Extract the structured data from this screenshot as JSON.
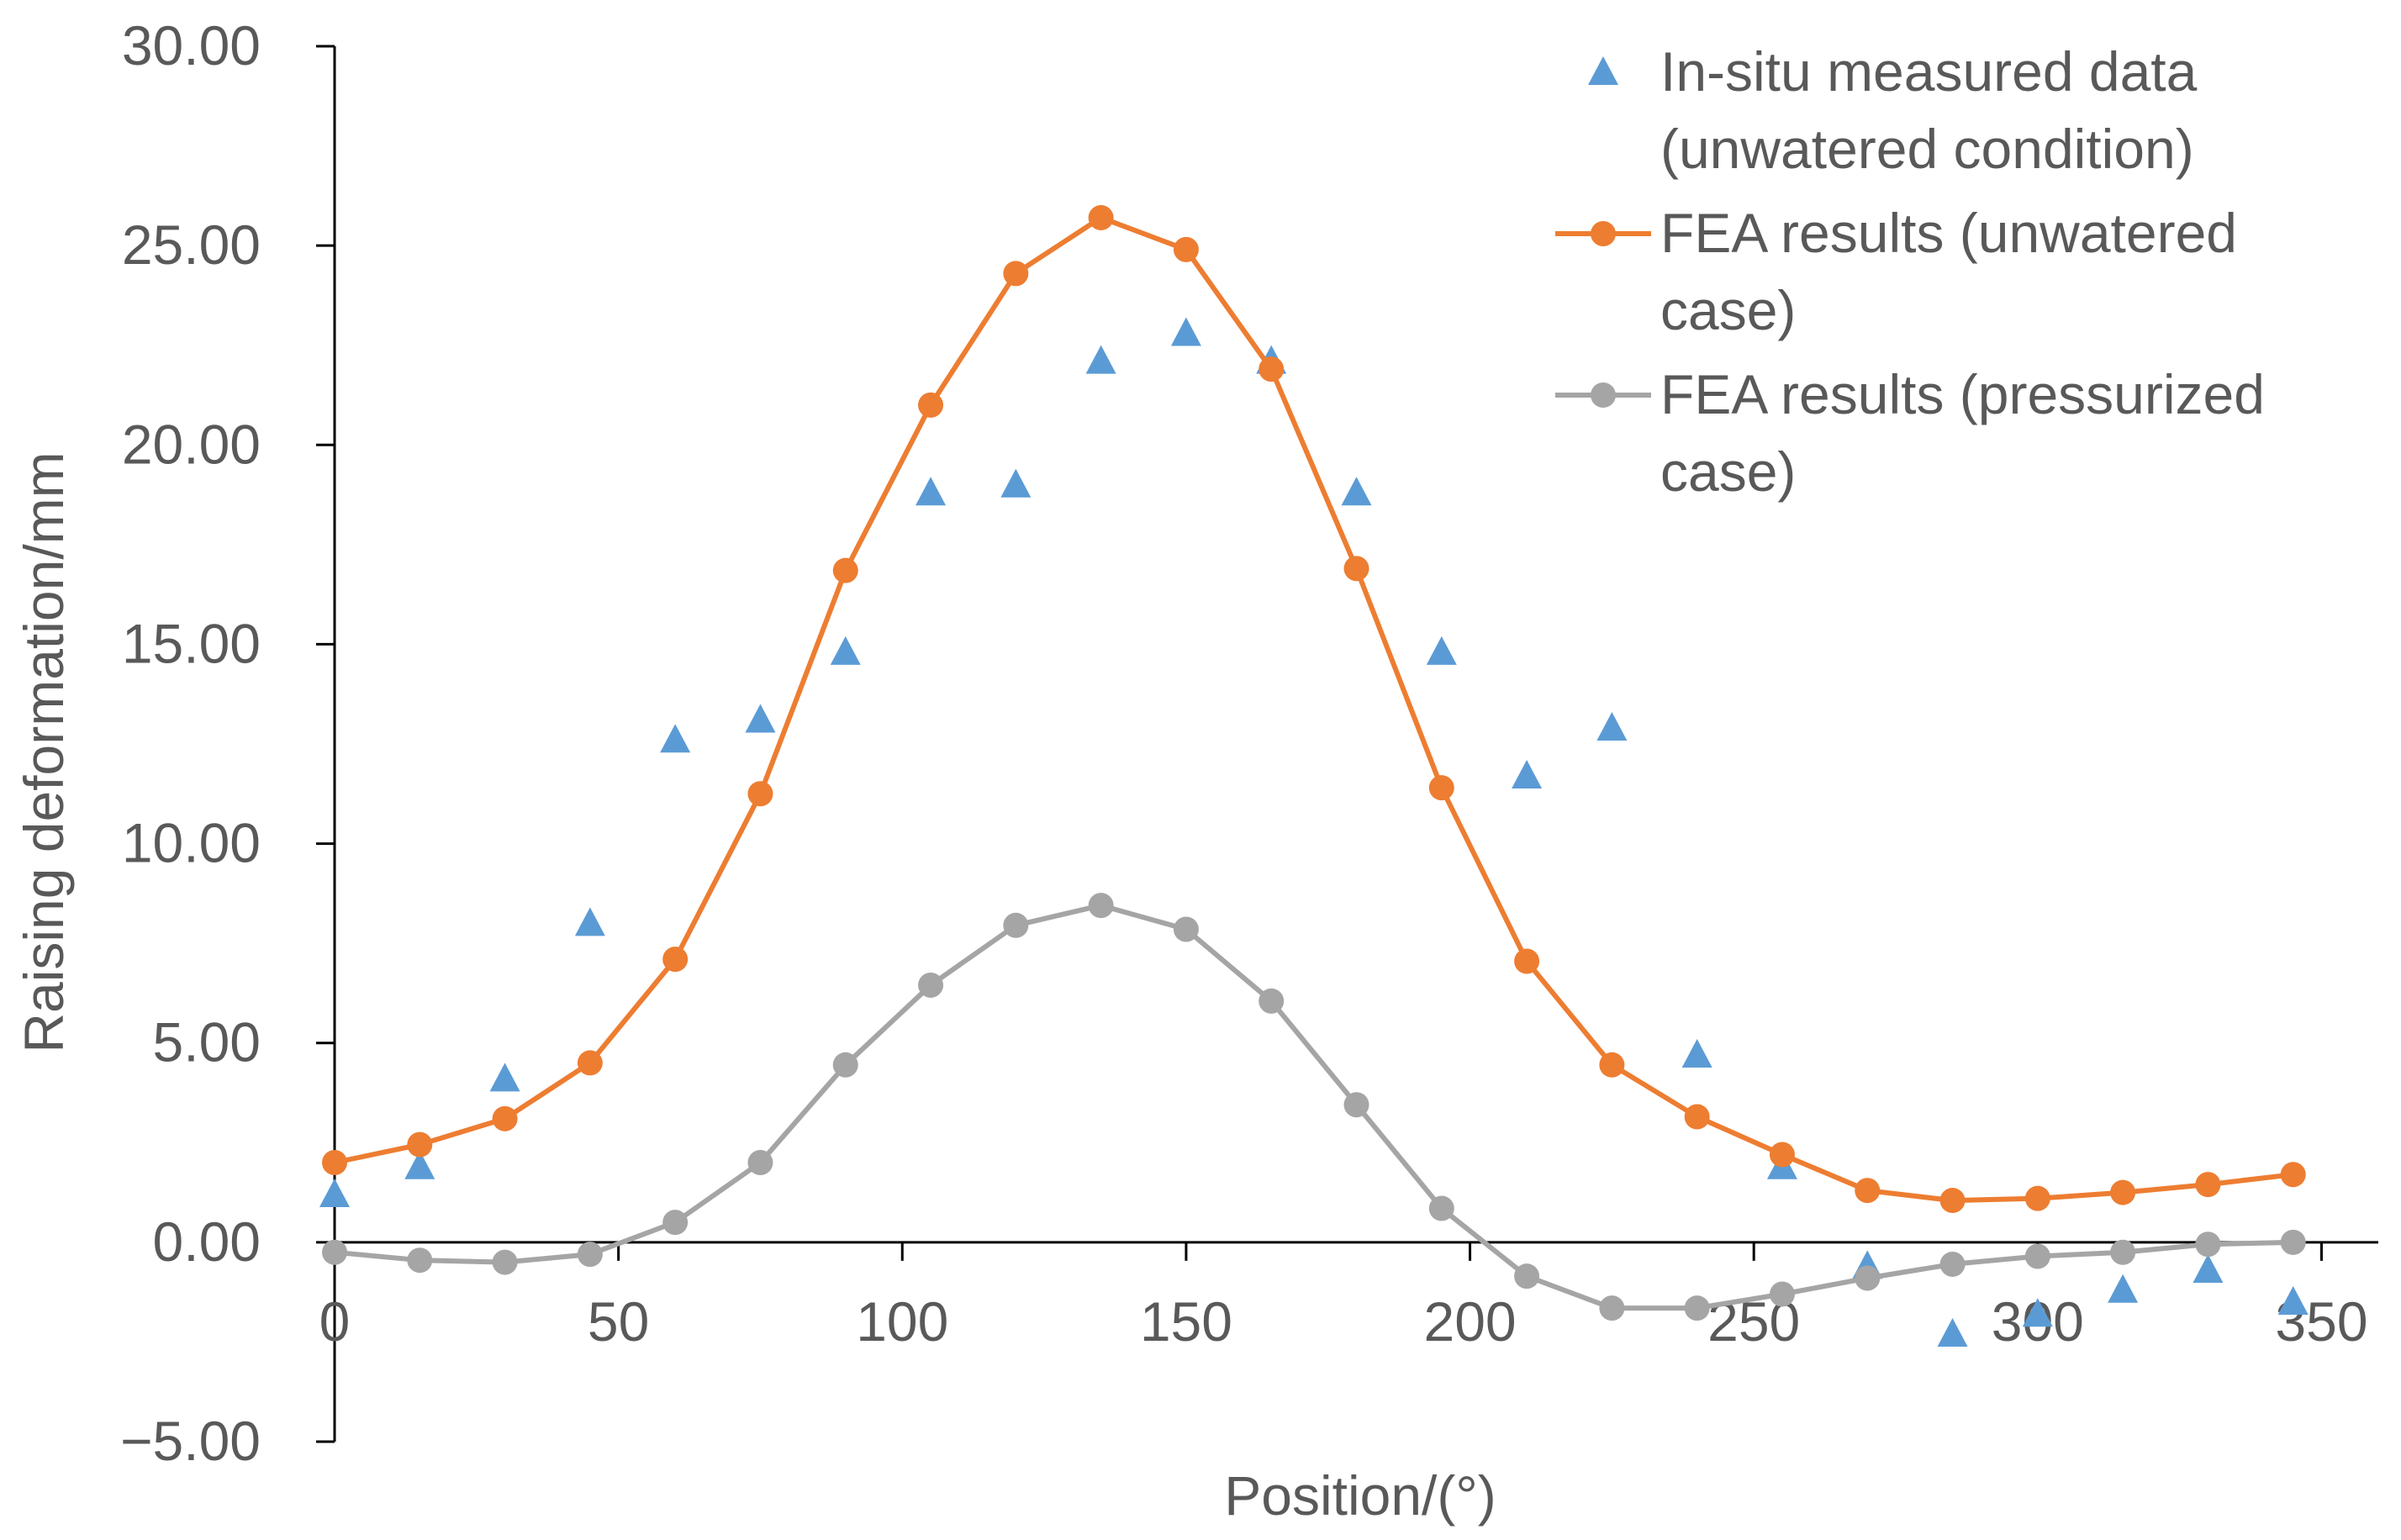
{
  "chart_data": {
    "type": "scatter",
    "title": "",
    "xlabel": "Position/(°)",
    "ylabel": "Raising deformation/mm",
    "xlim": [
      0,
      360
    ],
    "ylim": [
      -5,
      30
    ],
    "x_ticks": [
      "0",
      "50",
      "100",
      "150",
      "200",
      "250",
      "300",
      "350"
    ],
    "y_ticks": [
      "−5.00",
      "0.00",
      "5.00",
      "10.00",
      "15.00",
      "20.00",
      "25.00",
      "30.00"
    ],
    "grid": false,
    "legend_position": "top-right",
    "series": [
      {
        "name": "In-situ measured data (unwatered condition)",
        "legend_lines": [
          "In-situ measured data",
          "(unwatered condition)"
        ],
        "style": "markers-triangle",
        "color": "#5B9BD5",
        "x": [
          0,
          15,
          30,
          45,
          60,
          75,
          90,
          105,
          120,
          135,
          150,
          165,
          180,
          195,
          210,
          225,
          240,
          255,
          270,
          285,
          300,
          315,
          330,
          345
        ],
        "values": [
          1.2,
          1.9,
          4.1,
          8.0,
          12.6,
          13.1,
          14.8,
          18.8,
          19.0,
          22.1,
          22.8,
          22.1,
          18.8,
          14.8,
          11.7,
          12.9,
          4.7,
          1.9,
          -0.6,
          -2.3,
          -1.8,
          -1.2,
          -0.7,
          -1.5
        ]
      },
      {
        "name": "FEA results (unwatered case)",
        "legend_lines": [
          "FEA results (unwatered",
          "case)"
        ],
        "style": "line-circle",
        "color": "#ED7D31",
        "x": [
          0,
          15,
          30,
          45,
          60,
          75,
          90,
          105,
          120,
          135,
          150,
          165,
          180,
          195,
          210,
          225,
          240,
          255,
          270,
          285,
          300,
          315,
          330,
          345
        ],
        "values": [
          2.0,
          2.45,
          3.1,
          4.5,
          7.1,
          11.25,
          16.85,
          21.0,
          24.3,
          25.7,
          24.9,
          21.9,
          16.9,
          11.4,
          7.05,
          4.45,
          3.15,
          2.2,
          1.3,
          1.05,
          1.1,
          1.25,
          1.45,
          1.7
        ]
      },
      {
        "name": "FEA results (pressurized case)",
        "legend_lines": [
          "FEA results (pressurized",
          "case)"
        ],
        "style": "line-circle",
        "color": "#A5A5A5",
        "x": [
          0,
          15,
          30,
          45,
          60,
          75,
          90,
          105,
          120,
          135,
          150,
          165,
          180,
          195,
          210,
          225,
          240,
          255,
          270,
          285,
          300,
          315,
          330,
          345
        ],
        "values": [
          -0.25,
          -0.45,
          -0.5,
          -0.3,
          0.5,
          2.0,
          4.45,
          6.45,
          7.95,
          8.45,
          7.85,
          6.05,
          3.45,
          0.85,
          -0.85,
          -1.65,
          -1.65,
          -1.3,
          -0.9,
          -0.55,
          -0.35,
          -0.25,
          -0.05,
          0.0
        ]
      }
    ]
  }
}
